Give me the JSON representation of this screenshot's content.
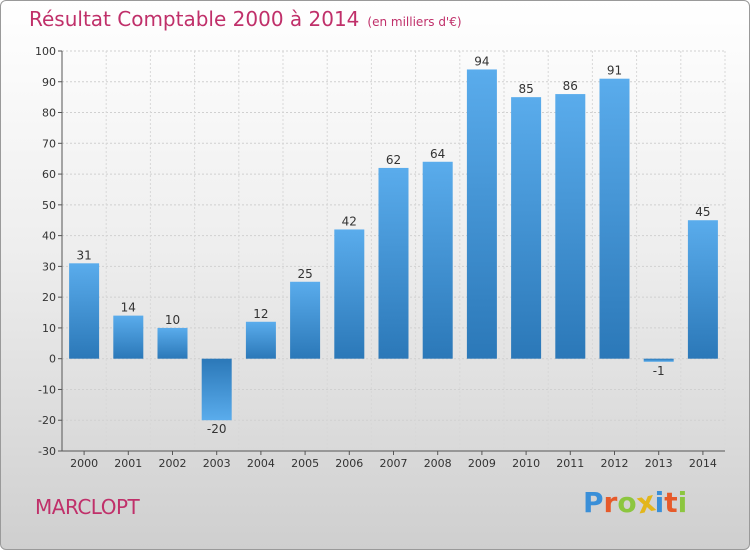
{
  "header": {
    "title": "Résultat Comptable 2000 à 2014",
    "subtitle": "(en milliers d'€)"
  },
  "footer": {
    "commune": "MARCLOPT",
    "logo_letters": [
      "P",
      "r",
      "o",
      "x",
      "i",
      "t",
      "i"
    ]
  },
  "colors": {
    "accent": "#c0306a",
    "bar_light": "#5aacec",
    "bar_dark": "#2b78b8",
    "logo": [
      "#3a8fd8",
      "#e65a2a",
      "#8cc63f",
      "#e3b61b",
      "#3a8fd8",
      "#e65a2a",
      "#8cc63f"
    ]
  },
  "chart_data": {
    "type": "bar",
    "title": "Résultat Comptable 2000 à 2014",
    "subtitle": "(en milliers d'€)",
    "categories": [
      "2000",
      "2001",
      "2002",
      "2003",
      "2004",
      "2005",
      "2006",
      "2007",
      "2008",
      "2009",
      "2010",
      "2011",
      "2012",
      "2013",
      "2014"
    ],
    "values": [
      31,
      14,
      10,
      -20,
      12,
      25,
      42,
      62,
      64,
      94,
      85,
      86,
      91,
      -1,
      45
    ],
    "data_labels": [
      "31",
      "14",
      "10",
      "-20",
      "12",
      "25",
      "42",
      "62",
      "64",
      "94",
      "85",
      "86",
      "91",
      "-1",
      "45"
    ],
    "y_ticks": [
      100,
      90,
      80,
      70,
      60,
      50,
      40,
      30,
      20,
      10,
      0,
      -10,
      -20,
      -30
    ],
    "ylim": [
      -30,
      100
    ],
    "xlabel": "",
    "ylabel": "",
    "grid": true
  }
}
